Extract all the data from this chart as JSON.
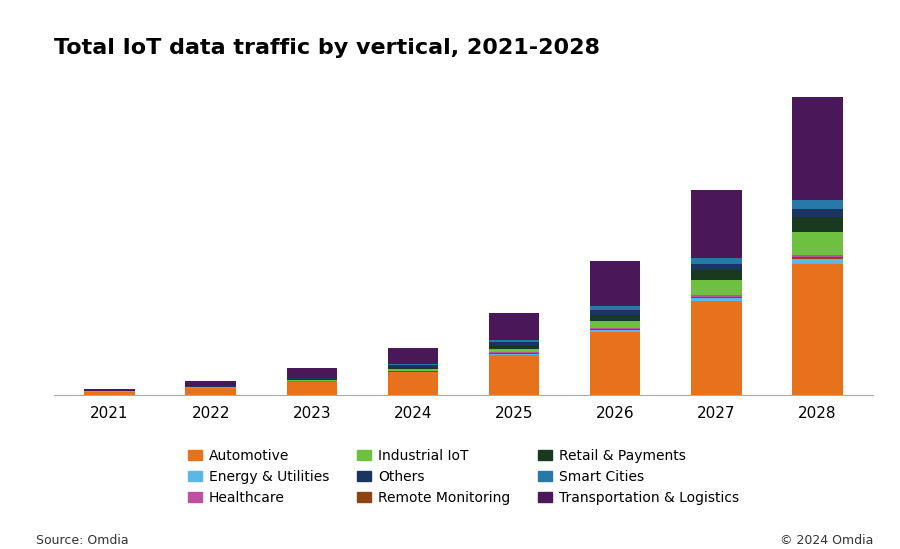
{
  "title": "Total IoT data traffic by vertical, 2021-2028",
  "years": [
    "2021",
    "2022",
    "2023",
    "2024",
    "2025",
    "2026",
    "2027",
    "2028"
  ],
  "source_left": "Source: Omdia",
  "source_right": "© 2024 Omdia",
  "segments": {
    "Automotive": [
      1.2,
      2.5,
      4.5,
      8.0,
      14.0,
      22.0,
      33.0,
      46.0
    ],
    "Energy & Utilities": [
      0.04,
      0.08,
      0.15,
      0.3,
      0.5,
      0.8,
      1.2,
      1.8
    ],
    "Remote Monitoring": [
      0.02,
      0.04,
      0.08,
      0.12,
      0.18,
      0.25,
      0.35,
      0.5
    ],
    "Healthcare": [
      0.04,
      0.08,
      0.12,
      0.2,
      0.35,
      0.5,
      0.7,
      1.0
    ],
    "Industrial IoT": [
      0.06,
      0.18,
      0.4,
      0.7,
      1.3,
      2.5,
      5.0,
      8.0
    ],
    "Retail & Payments": [
      0.06,
      0.18,
      0.35,
      0.7,
      1.3,
      2.2,
      3.5,
      5.0
    ],
    "Others": [
      0.05,
      0.14,
      0.28,
      0.55,
      0.95,
      1.5,
      2.1,
      2.9
    ],
    "Smart Cities": [
      0.05,
      0.12,
      0.22,
      0.45,
      0.8,
      1.4,
      2.2,
      3.2
    ],
    "Transportation & Logistics": [
      0.6,
      1.7,
      3.4,
      5.5,
      9.5,
      16.0,
      24.0,
      36.0
    ]
  },
  "colors": {
    "Automotive": "#E8721C",
    "Energy & Utilities": "#5BB8E6",
    "Remote Monitoring": "#8B4513",
    "Healthcare": "#BE50A0",
    "Industrial IoT": "#6EC040",
    "Retail & Payments": "#1A3A1F",
    "Others": "#1A3560",
    "Smart Cities": "#2878A8",
    "Transportation & Logistics": "#4A1858"
  },
  "background_color": "#ffffff",
  "bar_width": 0.5,
  "title_fontsize": 16,
  "tick_fontsize": 11,
  "legend_fontsize": 10
}
